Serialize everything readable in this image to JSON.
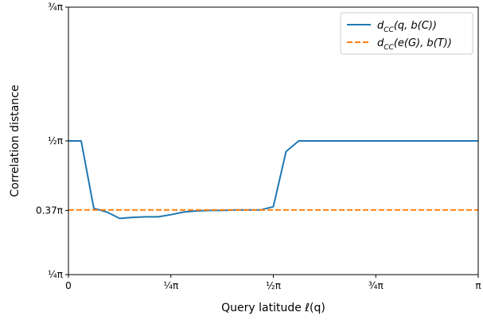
{
  "chart_data": {
    "type": "line",
    "title": "",
    "xlabel": "Query latitude ℓ(q)",
    "ylabel": "Correlation distance",
    "xlim": [
      0,
      1.0
    ],
    "ylim": [
      0.25,
      0.75
    ],
    "x_unit": "π",
    "y_unit": "π",
    "xticks": [
      {
        "value": 0.0,
        "label": "0"
      },
      {
        "value": 0.25,
        "label": "¼π"
      },
      {
        "value": 0.5,
        "label": "½π"
      },
      {
        "value": 0.75,
        "label": "¾π"
      },
      {
        "value": 1.0,
        "label": "π"
      }
    ],
    "yticks": [
      {
        "value": 0.25,
        "label": "¼π"
      },
      {
        "value": 0.37,
        "label": "0.37π"
      },
      {
        "value": 0.5,
        "label": "½π"
      },
      {
        "value": 0.75,
        "label": "¾π"
      }
    ],
    "grid": false,
    "legend_position": "top-right",
    "series": [
      {
        "name": "dCC(q, b(C))",
        "style": "solid",
        "color": "#1f77b4",
        "x": [
          0.0,
          0.031,
          0.062,
          0.094,
          0.125,
          0.156,
          0.188,
          0.219,
          0.25,
          0.281,
          0.312,
          0.344,
          0.375,
          0.406,
          0.438,
          0.469,
          0.5,
          0.531,
          0.562,
          1.0
        ],
        "y": [
          0.5,
          0.5,
          0.374,
          0.367,
          0.355,
          0.357,
          0.358,
          0.358,
          0.362,
          0.367,
          0.369,
          0.37,
          0.37,
          0.371,
          0.371,
          0.371,
          0.377,
          0.48,
          0.5,
          0.5
        ]
      },
      {
        "name": "dCC(e(G), b(T))",
        "style": "dashed",
        "color": "#ff7f0e",
        "x": [
          0.0,
          1.0
        ],
        "y": [
          0.371,
          0.371
        ]
      }
    ],
    "legend_labels": [
      {
        "main": "d",
        "sub": "CC",
        "rest": "(q, b(C))"
      },
      {
        "main": "d",
        "sub": "CC",
        "rest": "(e(G), b(T))"
      }
    ]
  }
}
